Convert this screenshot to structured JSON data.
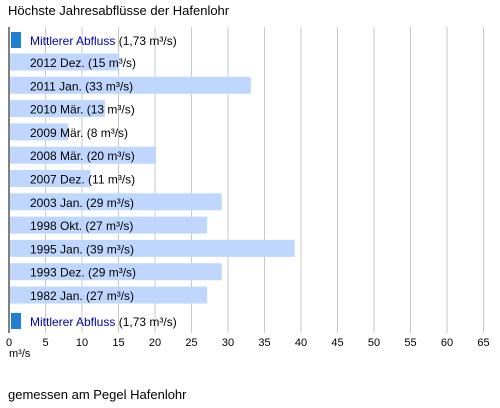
{
  "title": "Höchste Jahresabflüsse der Hafenlohr",
  "footnote": "gemessen am Pegel Hafenlohr",
  "colors": {
    "bar": "#bfd7ff",
    "mean_marker": "#1f7fd0",
    "grid": "#c8c8c8",
    "link": "#0000aa"
  },
  "chart_data": {
    "type": "bar",
    "orientation": "horizontal",
    "xlabel": "m³/s",
    "xlim": [
      0,
      65
    ],
    "xticks": [
      0,
      5,
      10,
      15,
      20,
      25,
      30,
      35,
      40,
      45,
      50,
      55,
      60,
      65
    ],
    "grid": true,
    "mean": {
      "name": "Mittlerer Abfluss",
      "value_label": "(1,73 m³/s)",
      "value": 1.73
    },
    "categories": [
      "2012 Dez.",
      "2011 Jan.",
      "2010 Mär.",
      "2009 Mär.",
      "2008 Mär.",
      "2007 Dez.",
      "2003 Jan.",
      "1998 Okt.",
      "1995 Jan.",
      "1993 Dez.",
      "1982 Jan."
    ],
    "values": [
      15,
      33,
      13,
      8,
      20,
      11,
      29,
      27,
      39,
      29,
      27
    ],
    "labels": [
      "2012 Dez. (15 m³/s)",
      "2011 Jan. (33 m³/s)",
      "2010 Mär. (13 m³/s)",
      "2009 Mär. (8 m³/s)",
      "2008 Mär. (20 m³/s)",
      "2007 Dez. (11 m³/s)",
      "2003 Jan. (29 m³/s)",
      "1998 Okt. (27 m³/s)",
      "1995 Jan. (39 m³/s)",
      "1993 Dez. (29 m³/s)",
      "1982 Jan. (27 m³/s)"
    ]
  }
}
